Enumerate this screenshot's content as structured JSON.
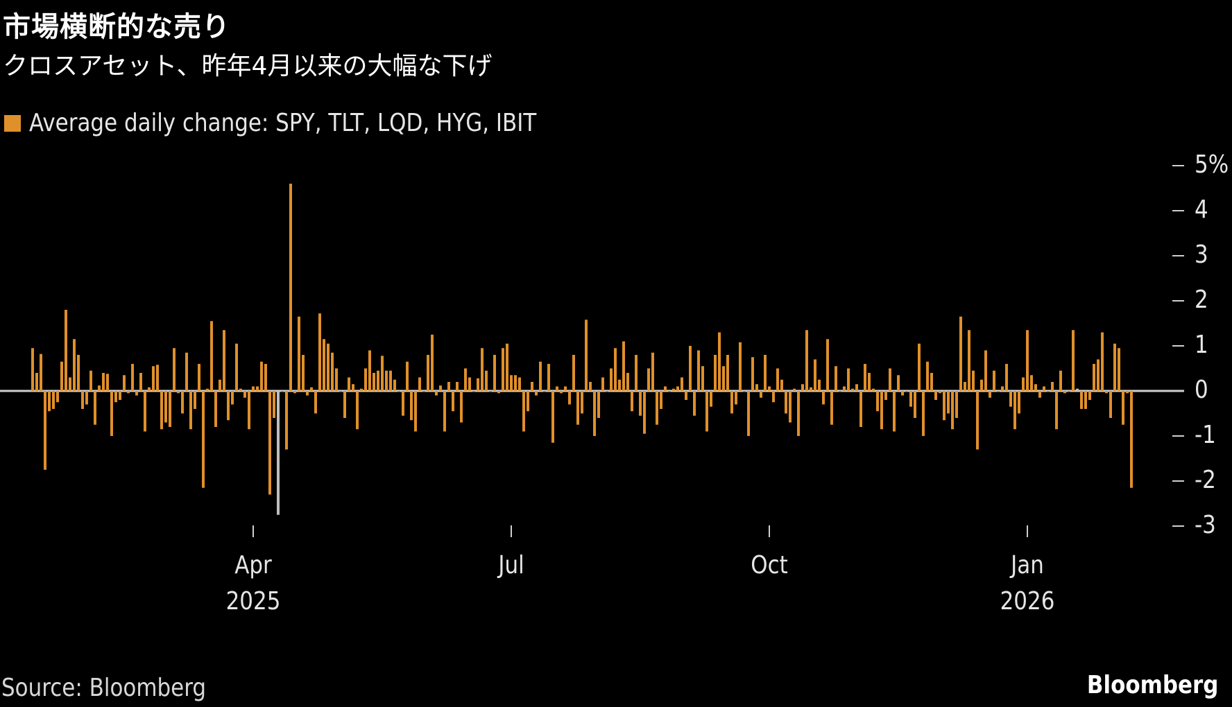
{
  "header": {
    "title": "市場横断的な売り",
    "subtitle": "クロスアセット、昨年4月以来の大幅な下げ"
  },
  "legend": {
    "label": "Average daily change: SPY, TLT, LQD, HYG, IBIT",
    "color": "#E0902A"
  },
  "footer": {
    "source": "Source: Bloomberg",
    "brand": "Bloomberg"
  },
  "colors": {
    "bar": "#E0902A",
    "highlight": "#BEBEBE",
    "axis": "#D0D0D0",
    "text": "#E6E6E6",
    "background": "#000000"
  },
  "chart_data": {
    "type": "bar",
    "title": "市場横断的な売り",
    "subtitle": "クロスアセット、昨年4月以来の大幅な下げ",
    "xlabel": "",
    "ylabel": "%",
    "ylim": [
      -3,
      5
    ],
    "yticks": [
      5,
      4,
      3,
      2,
      1,
      0,
      -1,
      -2,
      -3
    ],
    "ytick_labels": [
      "5%",
      "4",
      "3",
      "2",
      "1",
      "0",
      "-1",
      "-2",
      "-3"
    ],
    "xticks": [
      {
        "label": "Apr",
        "sub": "2025",
        "index": 53
      },
      {
        "label": "Jul",
        "sub": "",
        "index": 115
      },
      {
        "label": "Oct",
        "sub": "",
        "index": 177
      },
      {
        "label": "Jan",
        "sub": "2026",
        "index": 239
      }
    ],
    "grid": false,
    "legend_position": "top-left",
    "series": [
      {
        "name": "Average daily change: SPY, TLT, LQD, HYG, IBIT",
        "highlight_indices": [
          59,
          251
        ],
        "values": [
          0.95,
          0.4,
          0.82,
          -1.75,
          -0.45,
          -0.4,
          -0.25,
          0.65,
          1.8,
          0.3,
          1.15,
          0.8,
          -0.4,
          -0.3,
          0.45,
          -0.75,
          0.12,
          0.4,
          0.38,
          -1.0,
          -0.25,
          -0.2,
          0.35,
          -0.05,
          0.6,
          -0.1,
          0.4,
          -0.9,
          0.08,
          0.55,
          0.58,
          -0.85,
          -0.7,
          -0.8,
          0.95,
          -0.05,
          -0.5,
          0.85,
          -0.85,
          -0.4,
          0.6,
          -2.15,
          0.05,
          1.55,
          -0.8,
          0.25,
          1.35,
          -0.65,
          -0.3,
          1.05,
          0.05,
          -0.15,
          -0.85,
          0.1,
          0.1,
          0.65,
          0.6,
          -2.3,
          -0.6,
          -2.75,
          0.0,
          -1.3,
          4.6,
          -0.05,
          1.65,
          0.8,
          -0.1,
          0.08,
          -0.5,
          1.72,
          1.15,
          1.05,
          0.85,
          0.5,
          0.0,
          -0.6,
          0.3,
          0.15,
          -0.85,
          0.05,
          0.5,
          0.9,
          0.4,
          0.45,
          0.78,
          0.45,
          0.45,
          0.25,
          0.0,
          -0.55,
          0.65,
          -0.65,
          -0.9,
          0.3,
          0.0,
          0.8,
          1.25,
          -0.1,
          0.12,
          -0.9,
          0.2,
          -0.45,
          0.2,
          -0.7,
          0.5,
          0.3,
          0.0,
          0.28,
          0.95,
          0.45,
          0.0,
          0.8,
          -0.05,
          0.95,
          1.05,
          0.35,
          0.35,
          0.3,
          -0.9,
          -0.45,
          0.2,
          -0.1,
          0.65,
          0.0,
          0.6,
          -1.15,
          0.1,
          -0.05,
          0.1,
          -0.3,
          0.8,
          -0.75,
          -0.5,
          1.58,
          0.2,
          -1.0,
          -0.6,
          0.3,
          0.0,
          0.5,
          0.95,
          0.25,
          1.1,
          0.4,
          -0.45,
          0.8,
          -0.55,
          -0.95,
          0.5,
          0.85,
          -0.75,
          -0.4,
          0.1,
          0.0,
          0.05,
          0.1,
          0.3,
          -0.2,
          1.0,
          -0.55,
          0.9,
          0.55,
          -0.9,
          -0.35,
          0.8,
          1.3,
          0.55,
          0.8,
          -0.5,
          -0.3,
          1.08,
          0.0,
          -1.0,
          0.75,
          0.15,
          -0.15,
          0.8,
          0.1,
          -0.25,
          0.5,
          0.25,
          -0.5,
          -0.7,
          0.05,
          -1.0,
          0.15,
          1.35,
          0.08,
          0.7,
          0.25,
          -0.3,
          1.15,
          -0.75,
          0.55,
          0.0,
          0.1,
          0.5,
          0.05,
          0.15,
          -0.8,
          0.6,
          0.4,
          0.05,
          -0.45,
          -0.85,
          -0.2,
          0.5,
          -0.9,
          0.35,
          -0.1,
          0.0,
          -0.35,
          -0.6,
          1.05,
          -1.0,
          0.65,
          0.4,
          -0.2,
          -0.05,
          -0.65,
          -0.5,
          -0.85,
          -0.6,
          1.65,
          0.2,
          1.35,
          0.45,
          -1.3,
          0.25,
          0.9,
          -0.15,
          0.45,
          0.0,
          0.1,
          0.6,
          -0.35,
          -0.85,
          -0.5,
          0.3,
          1.35,
          0.35,
          0.15,
          -0.15,
          0.1,
          0.0,
          0.2,
          -0.85,
          0.45,
          -0.05,
          0.0,
          1.35,
          0.05,
          -0.4,
          -0.4,
          -0.2,
          0.6,
          0.7,
          1.3,
          -0.05,
          -0.6,
          1.05,
          0.95,
          -0.75,
          -0.05,
          -2.15
        ]
      }
    ]
  }
}
